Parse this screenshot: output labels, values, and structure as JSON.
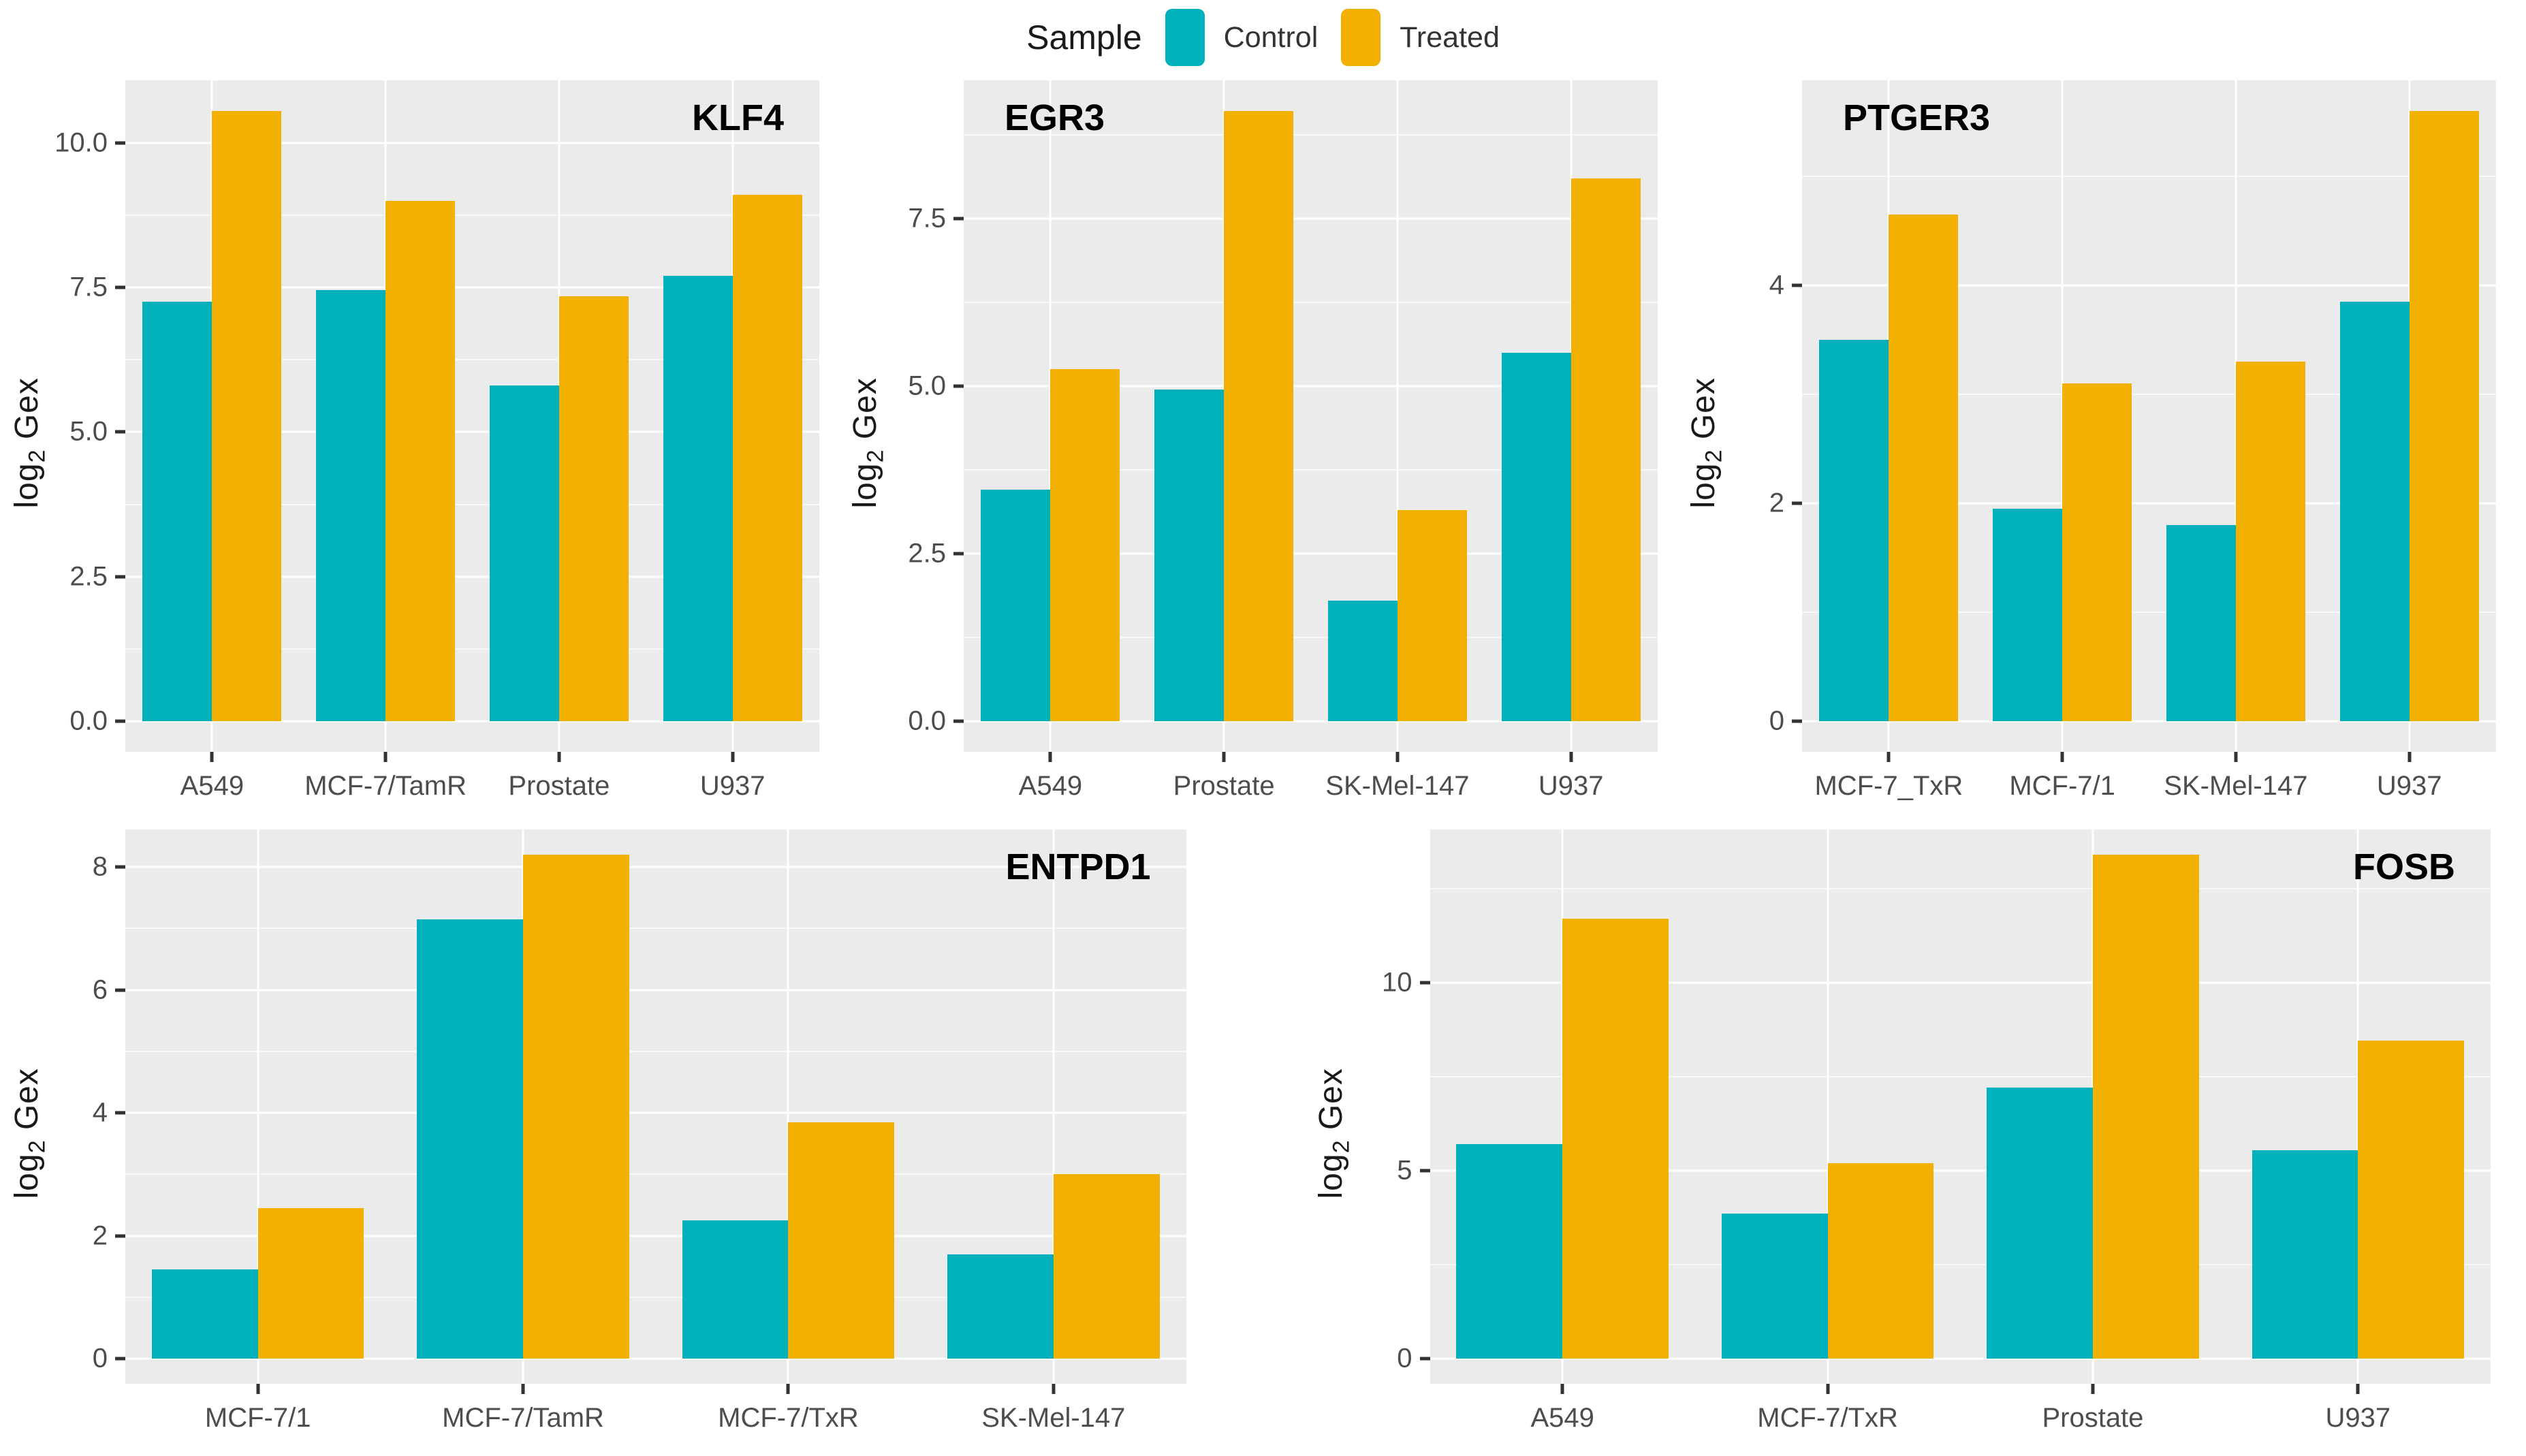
{
  "legend": {
    "title": "Sample",
    "items": [
      {
        "label": "Control",
        "color": "#00B1BC"
      },
      {
        "label": "Treated",
        "color": "#F2B100"
      }
    ]
  },
  "y_axis_label_parts": {
    "base": "log",
    "sub": "2",
    "rest": " Gex"
  },
  "colors": {
    "control": "#00B1BC",
    "treated": "#F2B100",
    "panel_background": "#EBEBEB",
    "major_gridline": "#FFFFFF",
    "tick_text": "#4d4d4d",
    "tick_mark": "#333333"
  },
  "chart_data": [
    {
      "type": "bar",
      "title": "KLF4",
      "title_position": "right",
      "row": 1,
      "xlabel": "",
      "ylabel": "log2 Gex",
      "categories": [
        "A549",
        "MCF-7/TamR",
        "Prostate",
        "U937"
      ],
      "series": [
        {
          "name": "Control",
          "values": [
            7.25,
            7.45,
            5.8,
            7.7
          ]
        },
        {
          "name": "Treated",
          "values": [
            10.55,
            9.0,
            7.35,
            9.1
          ]
        }
      ],
      "y_ticks": [
        "0.0",
        "2.5",
        "5.0",
        "7.5",
        "10.0"
      ],
      "y_tick_values": [
        0,
        2.5,
        5,
        7.5,
        10
      ],
      "y_minor_values": [
        1.25,
        3.75,
        6.25,
        8.75
      ],
      "ylim": [
        -0.53,
        11.08
      ],
      "grid": true,
      "legend_position": "top-center-shared"
    },
    {
      "type": "bar",
      "title": "EGR3",
      "title_position": "left",
      "row": 1,
      "xlabel": "",
      "ylabel": "log2 Gex",
      "categories": [
        "A549",
        "Prostate",
        "SK-Mel-147",
        "U937"
      ],
      "series": [
        {
          "name": "Control",
          "values": [
            3.45,
            4.95,
            1.8,
            5.5
          ]
        },
        {
          "name": "Treated",
          "values": [
            5.25,
            9.1,
            3.15,
            8.1
          ]
        }
      ],
      "y_ticks": [
        "0.0",
        "2.5",
        "5.0",
        "7.5"
      ],
      "y_tick_values": [
        0,
        2.5,
        5,
        7.5
      ],
      "y_minor_values": [
        1.25,
        3.75,
        6.25,
        8.75
      ],
      "ylim": [
        -0.46,
        9.56
      ],
      "grid": true,
      "legend_position": "top-center-shared"
    },
    {
      "type": "bar",
      "title": "PTGER3",
      "title_position": "left",
      "row": 1,
      "xlabel": "",
      "ylabel": "log2 Gex",
      "categories": [
        "MCF-7_TxR",
        "MCF-7/1",
        "SK-Mel-147",
        "U937"
      ],
      "series": [
        {
          "name": "Control",
          "values": [
            3.5,
            1.95,
            1.8,
            3.85
          ]
        },
        {
          "name": "Treated",
          "values": [
            4.65,
            3.1,
            3.3,
            5.6
          ]
        }
      ],
      "y_ticks": [
        "0",
        "2",
        "4"
      ],
      "y_tick_values": [
        0,
        2,
        4
      ],
      "y_minor_values": [
        1,
        3,
        5
      ],
      "ylim": [
        -0.28,
        5.88
      ],
      "grid": true,
      "legend_position": "top-center-shared"
    },
    {
      "type": "bar",
      "title": "ENTPD1",
      "title_position": "right",
      "row": 2,
      "xlabel": "",
      "ylabel": "log2 Gex",
      "categories": [
        "MCF-7/1",
        "MCF-7/TamR",
        "MCF-7/TxR",
        "SK-Mel-147"
      ],
      "series": [
        {
          "name": "Control",
          "values": [
            1.45,
            7.15,
            2.25,
            1.7
          ]
        },
        {
          "name": "Treated",
          "values": [
            2.45,
            8.2,
            3.85,
            3.0
          ]
        }
      ],
      "y_ticks": [
        "0",
        "2",
        "4",
        "6",
        "8"
      ],
      "y_tick_values": [
        0,
        2,
        4,
        6,
        8
      ],
      "y_minor_values": [
        1,
        3,
        5,
        7
      ],
      "ylim": [
        -0.41,
        8.61
      ],
      "grid": true,
      "legend_position": "top-center-shared"
    },
    {
      "type": "bar",
      "title": "FOSB",
      "title_position": "right",
      "row": 2,
      "xlabel": "",
      "ylabel": "log2 Gex",
      "categories": [
        "A549",
        "MCF-7/TxR",
        "Prostate",
        "U937"
      ],
      "series": [
        {
          "name": "Control",
          "values": [
            5.7,
            3.85,
            7.2,
            5.55
          ]
        },
        {
          "name": "Treated",
          "values": [
            11.7,
            5.2,
            13.4,
            8.45
          ]
        }
      ],
      "y_ticks": [
        "0",
        "5",
        "10"
      ],
      "y_tick_values": [
        0,
        5,
        10
      ],
      "y_minor_values": [
        2.5,
        7.5,
        12.5
      ],
      "ylim": [
        -0.67,
        14.07
      ],
      "grid": true,
      "legend_position": "top-center-shared"
    }
  ]
}
